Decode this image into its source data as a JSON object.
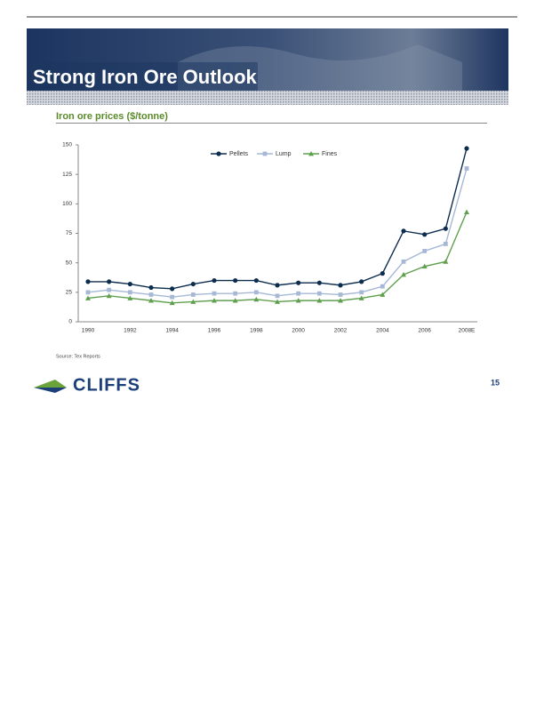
{
  "page": {
    "title": "Strong Iron Ore Outlook",
    "source": "Source:  Tex Reports",
    "logo": "CLIFFS",
    "page_number": 15
  },
  "chart_data": {
    "type": "line",
    "title": "Iron ore prices ($/tonne)",
    "categories": [
      "1990",
      null,
      "1992",
      null,
      "1994",
      null,
      "1996",
      null,
      "1998",
      null,
      "2000",
      null,
      "2002",
      null,
      "2004",
      null,
      "2006",
      null,
      "2008E"
    ],
    "series": [
      {
        "name": "Pellets",
        "color": "#0d2d4f",
        "marker": "circle",
        "values": [
          34,
          34,
          32,
          29,
          28,
          32,
          35,
          35,
          35,
          31,
          33,
          33,
          31,
          34,
          41,
          77,
          74,
          79,
          147
        ]
      },
      {
        "name": "Lump",
        "color": "#a6b8d6",
        "marker": "square",
        "values": [
          25,
          27,
          25,
          23,
          21,
          23,
          24,
          24,
          25,
          22,
          24,
          24,
          23,
          25,
          30,
          51,
          60,
          66,
          130
        ]
      },
      {
        "name": "Fines",
        "color": "#5fa04e",
        "marker": "triangle",
        "values": [
          20,
          22,
          20,
          18,
          16,
          17,
          18,
          18,
          19,
          17,
          18,
          18,
          18,
          20,
          23,
          40,
          47,
          51,
          93
        ]
      }
    ],
    "ylim": [
      0,
      150
    ],
    "yticks": [
      0,
      25,
      50,
      75,
      100,
      125,
      150
    ],
    "grid": false,
    "legend": "top"
  }
}
